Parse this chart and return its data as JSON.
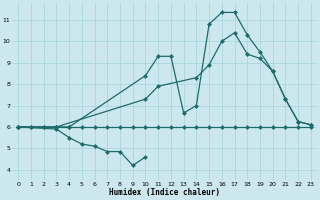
{
  "xlabel": "Humidex (Indice chaleur)",
  "bg_color": "#cce8ee",
  "grid_color": "#b0d8e0",
  "line_color": "#1e6b6b",
  "xlim": [
    -0.5,
    23.5
  ],
  "ylim": [
    3.5,
    11.8
  ],
  "xticks": [
    0,
    1,
    2,
    3,
    4,
    5,
    6,
    7,
    8,
    9,
    10,
    11,
    12,
    13,
    14,
    15,
    16,
    17,
    18,
    19,
    20,
    21,
    22,
    23
  ],
  "yticks": [
    4,
    5,
    6,
    7,
    8,
    9,
    10,
    11
  ],
  "series_flat_x": [
    0,
    1,
    2,
    3,
    4,
    5,
    6,
    7,
    8,
    9,
    10,
    11,
    12,
    13,
    14,
    15,
    16,
    17,
    18,
    19,
    20,
    21,
    22,
    23
  ],
  "series_flat_y": [
    6.0,
    6.0,
    6.0,
    6.0,
    6.0,
    6.0,
    6.0,
    6.0,
    6.0,
    6.0,
    6.0,
    6.0,
    6.0,
    6.0,
    6.0,
    6.0,
    6.0,
    6.0,
    6.0,
    6.0,
    6.0,
    6.0,
    6.0,
    6.0
  ],
  "series_dip_x": [
    0,
    3,
    4,
    5,
    6,
    7,
    8,
    9,
    10
  ],
  "series_dip_y": [
    6.0,
    5.9,
    5.5,
    5.2,
    5.1,
    4.85,
    4.85,
    4.2,
    4.6
  ],
  "series_peak_x": [
    0,
    1,
    2,
    3,
    4,
    10,
    11,
    12,
    13,
    14,
    15,
    16,
    17,
    18,
    19,
    20,
    21,
    22,
    23
  ],
  "series_peak_y": [
    6.0,
    6.0,
    6.0,
    6.0,
    6.0,
    8.4,
    9.3,
    9.3,
    6.65,
    7.0,
    10.8,
    11.35,
    11.35,
    10.3,
    9.5,
    8.6,
    7.3,
    6.25,
    6.1
  ],
  "series_rise_x": [
    0,
    3,
    10,
    11,
    14,
    15,
    16,
    17,
    18,
    19,
    20,
    21,
    22,
    23
  ],
  "series_rise_y": [
    6.0,
    6.0,
    7.3,
    7.9,
    8.3,
    8.9,
    10.0,
    10.4,
    9.4,
    9.2,
    8.6,
    7.3,
    6.25,
    6.1
  ]
}
